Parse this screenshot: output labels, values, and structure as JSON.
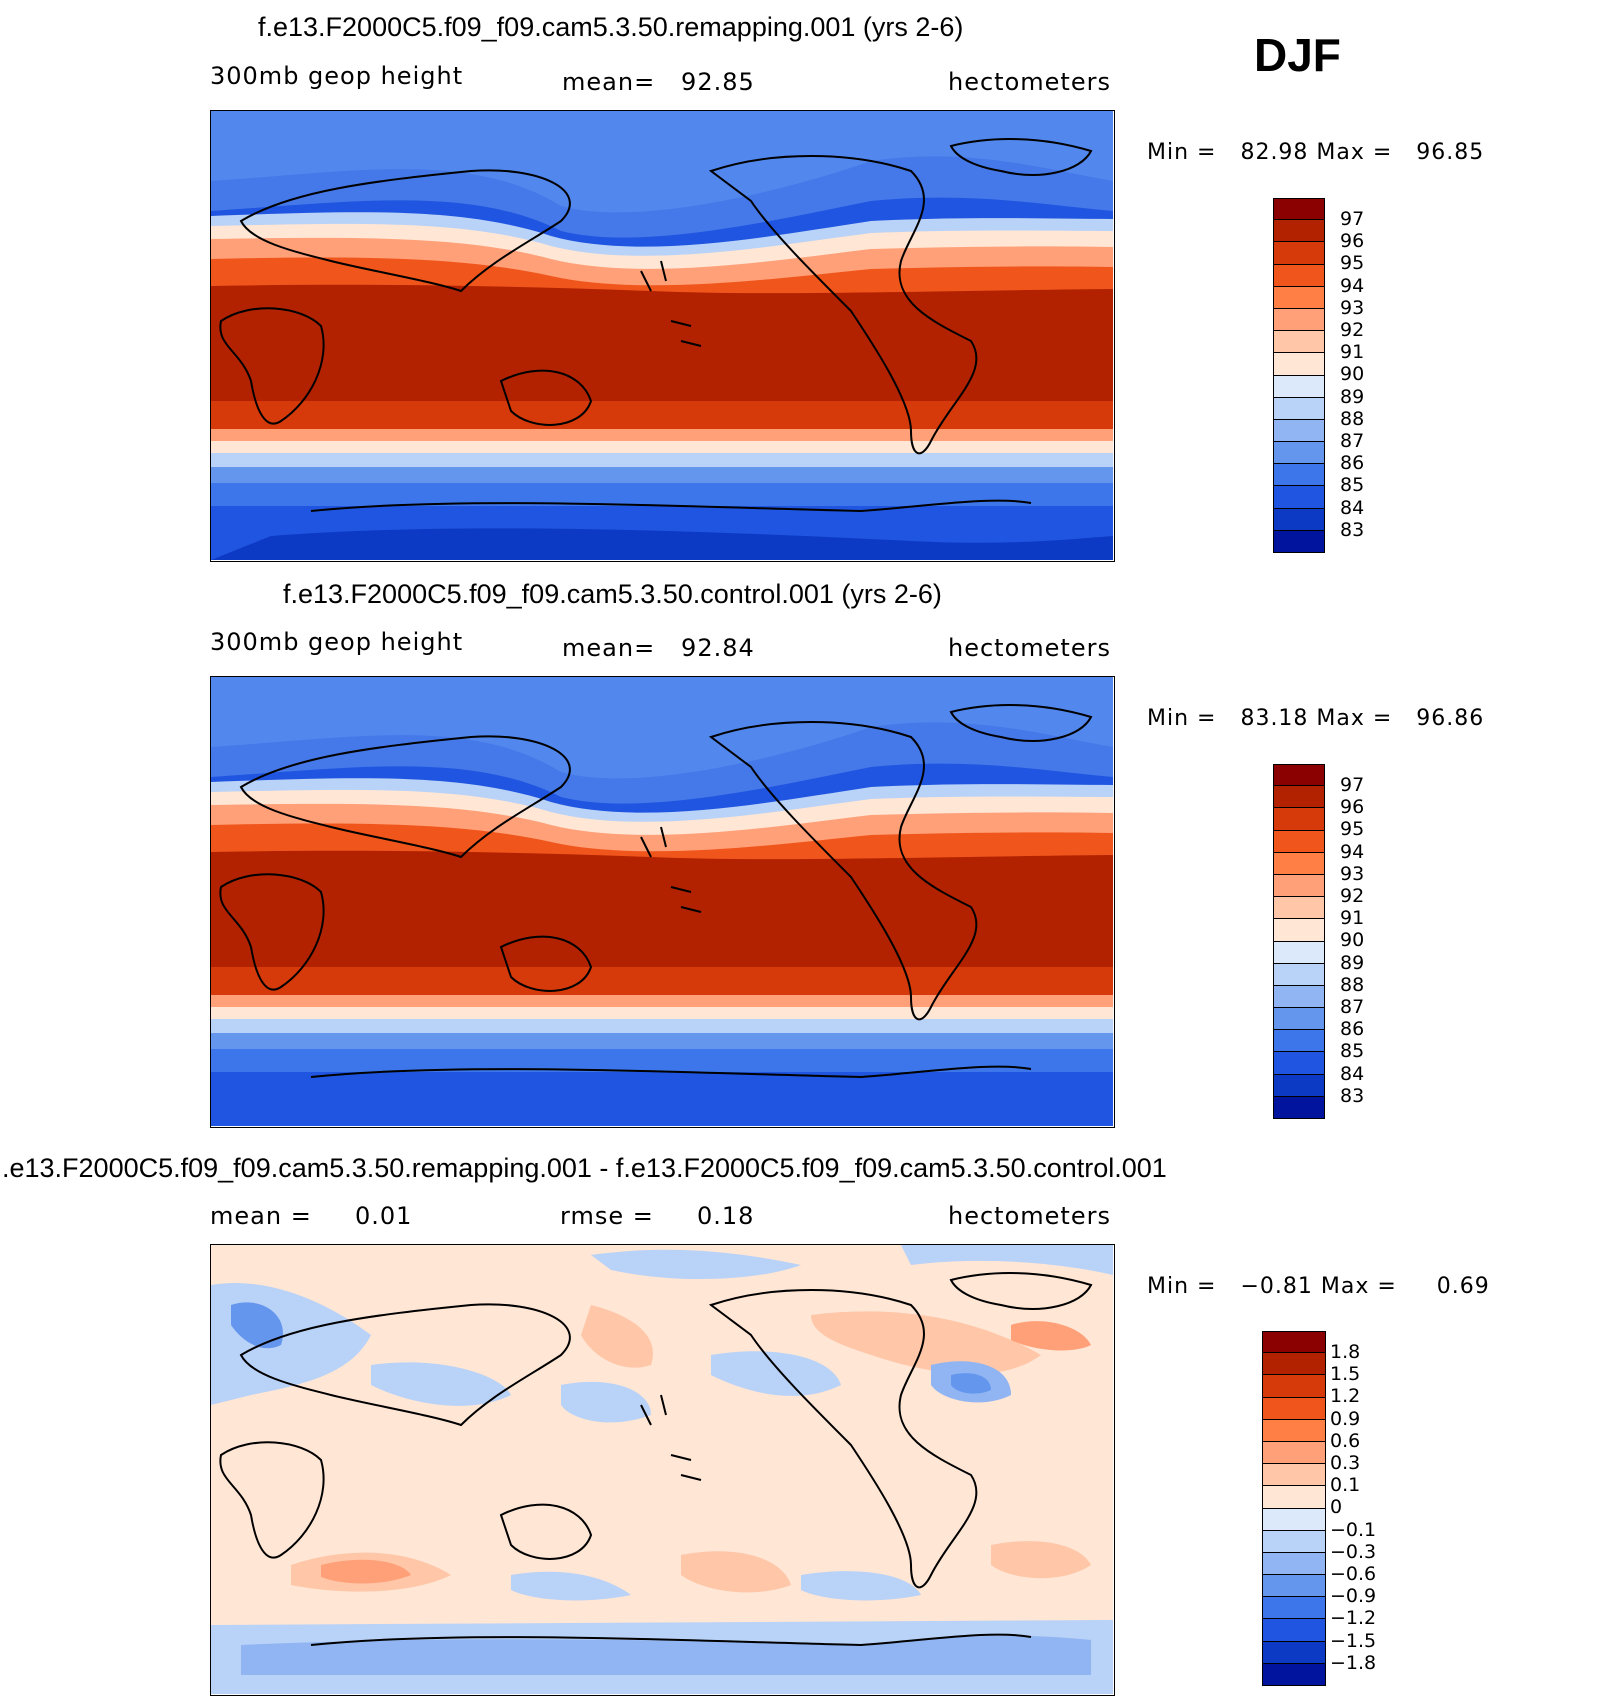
{
  "season": "DJF",
  "panels": [
    {
      "title": "f.e13.F2000C5.f09_f09.cam5.3.50.remapping.001 (yrs 2-6)",
      "left_label": "300mb geop height",
      "center_label": "mean=   92.85",
      "right_label": "hectometers",
      "minmax": "Min =   82.98 Max =   96.85"
    },
    {
      "title": "f.e13.F2000C5.f09_f09.cam5.3.50.control.001 (yrs 2-6)",
      "left_label": "300mb geop height",
      "center_label": "mean=   92.84",
      "right_label": "hectometers",
      "minmax": "Min =   83.18 Max =   96.86"
    },
    {
      "title": ".e13.F2000C5.f09_f09.cam5.3.50.remapping.001 - f.e13.F2000C5.f09_f09.cam5.3.50.control.001",
      "left_label": "mean =     0.01",
      "center_label": "rmse =     0.18",
      "right_label": "hectometers",
      "minmax": "Min =   −0.81 Max =     0.69"
    }
  ],
  "colorbars": {
    "height": {
      "labels": [
        "97",
        "96",
        "95",
        "94",
        "93",
        "92",
        "91",
        "90",
        "89",
        "88",
        "87",
        "86",
        "85",
        "84",
        "83"
      ],
      "colors": [
        "#8b0000",
        "#b22200",
        "#d63a0a",
        "#f0561c",
        "#ff7f45",
        "#ffa079",
        "#ffc6a8",
        "#ffe6d5",
        "#dbe9fb",
        "#b9d2f7",
        "#90b5f2",
        "#6596ee",
        "#3d76ea",
        "#1f55e0",
        "#0d3ac4",
        "#00149e"
      ]
    },
    "diff": {
      "labels": [
        "1.8",
        "1.5",
        "1.2",
        "0.9",
        "0.6",
        "0.3",
        "0.1",
        "0",
        "−0.1",
        "−0.3",
        "−0.6",
        "−0.9",
        "−1.2",
        "−1.5",
        "−1.8"
      ],
      "colors": [
        "#8b0000",
        "#b22200",
        "#d63a0a",
        "#f0561c",
        "#ff7f45",
        "#ffa079",
        "#ffc6a8",
        "#ffe6d5",
        "#dbe9fb",
        "#b9d2f7",
        "#90b5f2",
        "#6596ee",
        "#3d76ea",
        "#1f55e0",
        "#0d3ac4",
        "#00149e"
      ]
    }
  }
}
